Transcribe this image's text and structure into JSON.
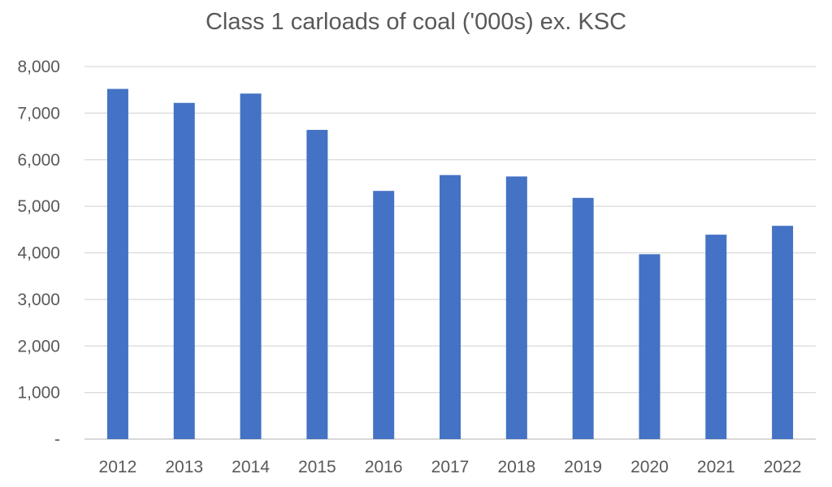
{
  "chart_data": {
    "type": "bar",
    "title": "Class 1 carloads of coal ('000s) ex. KSC",
    "xlabel": "",
    "ylabel": "",
    "categories": [
      "2012",
      "2013",
      "2014",
      "2015",
      "2016",
      "2017",
      "2018",
      "2019",
      "2020",
      "2021",
      "2022"
    ],
    "series": [
      {
        "name": "Class 1 carloads of coal ('000s) ex. KSC",
        "values": [
          7520,
          7220,
          7420,
          6640,
          5330,
          5670,
          5640,
          5180,
          3970,
          4390,
          4580
        ]
      }
    ],
    "ylim": [
      0,
      8000
    ],
    "yticks": [
      0,
      1000,
      2000,
      3000,
      4000,
      5000,
      6000,
      7000,
      8000
    ],
    "ytick_labels": [
      "-",
      "1,000",
      "2,000",
      "3,000",
      "4,000",
      "5,000",
      "6,000",
      "7,000",
      "8,000"
    ],
    "grid": true,
    "legend": "none",
    "bar_color": "#4472c4"
  }
}
